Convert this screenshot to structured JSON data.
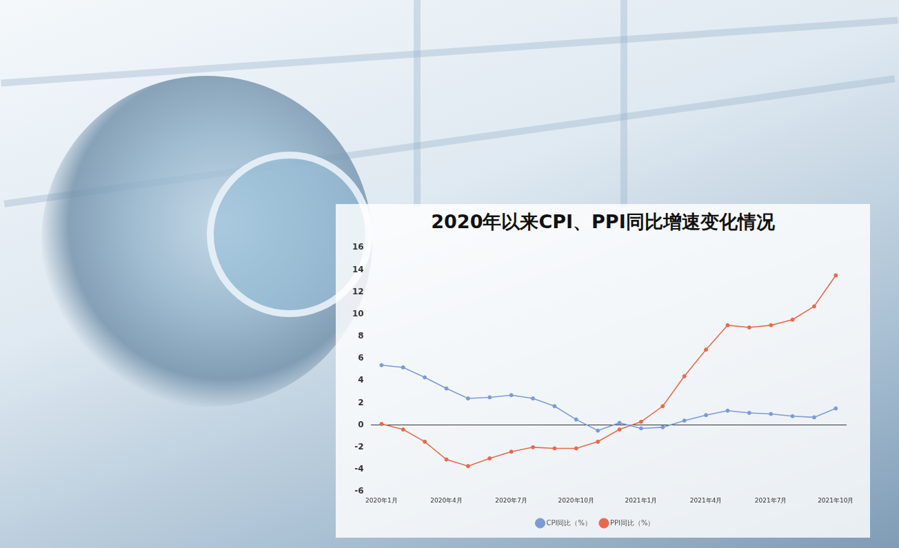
{
  "chart_data": {
    "type": "line",
    "title": "2020年以来CPI、PPI同比增速变化情况",
    "categories": [
      "2020年1月",
      null,
      null,
      "2020年4月",
      null,
      null,
      "2020年7月",
      null,
      null,
      "2020年10月",
      null,
      null,
      "2021年1月",
      null,
      null,
      "2021年4月",
      null,
      null,
      "2021年7月",
      null,
      null,
      "2021年10月"
    ],
    "series": [
      {
        "name": "CPI同比（%）",
        "color": "#7b9bd6",
        "marker": "circle",
        "line_style": "solid",
        "values": [
          5.4,
          5.2,
          4.3,
          3.3,
          2.4,
          2.5,
          2.7,
          2.4,
          1.7,
          0.5,
          -0.5,
          0.2,
          -0.3,
          -0.2,
          0.4,
          0.9,
          1.3,
          1.1,
          1.0,
          0.8,
          0.7,
          1.5
        ]
      },
      {
        "name": "PPI同比（%）",
        "color": "#e8694a",
        "marker": "circle",
        "line_style": "solid",
        "values": [
          0.1,
          -0.4,
          -1.5,
          -3.1,
          -3.7,
          -3.0,
          -2.4,
          -2.0,
          -2.1,
          -2.1,
          -1.5,
          -0.4,
          0.3,
          1.7,
          4.4,
          6.8,
          9.0,
          8.8,
          9.0,
          9.5,
          10.7,
          13.5
        ]
      }
    ],
    "ylim": [
      -6,
      16
    ],
    "yticks": [
      -6,
      -4,
      -2,
      0,
      2,
      4,
      6,
      8,
      10,
      12,
      14,
      16
    ],
    "grid": false,
    "legend": "bottom"
  }
}
